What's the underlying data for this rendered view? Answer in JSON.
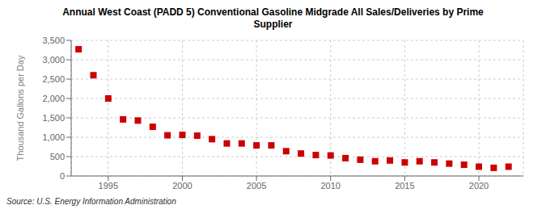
{
  "chart_data": {
    "type": "scatter",
    "title": "Annual West Coast (PADD 5) Conventional Gasoline Midgrade All Sales/Deliveries by Prime\nSupplier",
    "ylabel": "Thousand Gallons per Day",
    "source": "Source: U.S. Energy Information Administration",
    "x": [
      1993,
      1994,
      1995,
      1996,
      1997,
      1998,
      1999,
      2000,
      2001,
      2002,
      2003,
      2004,
      2005,
      2006,
      2007,
      2008,
      2009,
      2010,
      2011,
      2012,
      2013,
      2014,
      2015,
      2016,
      2017,
      2018,
      2019,
      2020,
      2021,
      2022
    ],
    "values": [
      3270,
      2600,
      2000,
      1460,
      1430,
      1270,
      1050,
      1060,
      1040,
      950,
      840,
      840,
      790,
      790,
      640,
      580,
      540,
      530,
      460,
      420,
      380,
      400,
      350,
      380,
      350,
      320,
      290,
      240,
      210,
      240
    ],
    "color": "#cc0000",
    "marker": "square",
    "xlim": [
      1992.5,
      2023
    ],
    "xticks": [
      1995,
      2000,
      2005,
      2010,
      2015,
      2020
    ],
    "ylim": [
      0,
      3500
    ],
    "yticks": [
      0,
      500,
      {
        "value": 1000,
        "label": "1,000"
      },
      {
        "value": 1500,
        "label": "1,500"
      },
      {
        "value": 2000,
        "label": "2,000"
      },
      {
        "value": 2500,
        "label": "2,500"
      },
      {
        "value": 3000,
        "label": "3,000"
      },
      {
        "value": 3500,
        "label": "3,500"
      }
    ],
    "grid": true
  }
}
